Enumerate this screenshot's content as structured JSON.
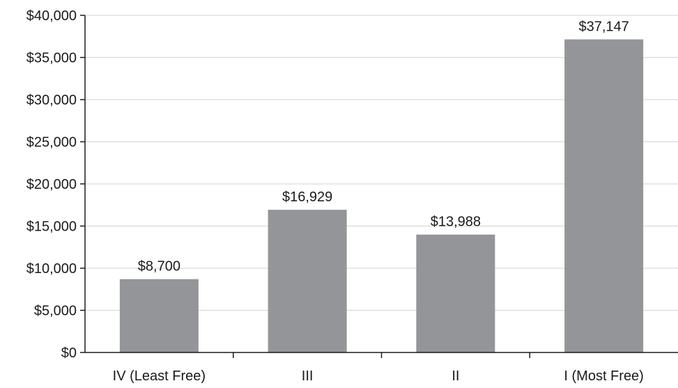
{
  "chart_data": {
    "type": "bar",
    "title": "",
    "xlabel": "",
    "ylabel": "",
    "categories": [
      "IV (Least Free)",
      "III",
      "II",
      "I (Most Free)"
    ],
    "values": [
      8700,
      16929,
      13988,
      37147
    ],
    "data_labels": [
      "$8,700",
      "$16,929",
      "$13,988",
      "$37,147"
    ],
    "ylim": [
      0,
      40000
    ],
    "y_ticks": [
      0,
      5000,
      10000,
      15000,
      20000,
      25000,
      30000,
      35000,
      40000
    ],
    "y_tick_labels": [
      "$0",
      "$5,000",
      "$10,000",
      "$15,000",
      "$20,000",
      "$25,000",
      "$30,000",
      "$35,000",
      "$40,000"
    ],
    "grid": true,
    "legend": "none",
    "colors": {
      "bar": "#939598",
      "grid": "#d9d9d9",
      "axis": "#1a1a1a",
      "text": "#1a1a1a"
    }
  }
}
